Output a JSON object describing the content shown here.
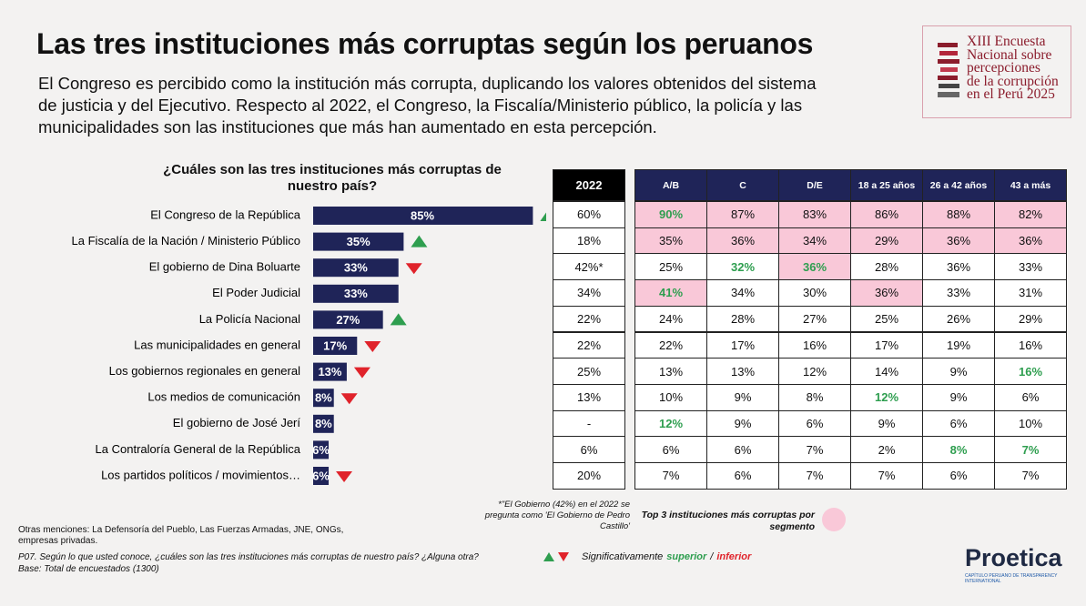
{
  "header": {
    "title": "Las tres instituciones más corruptas según los peruanos",
    "subtitle": "El Congreso es percibido como la institución más corrupta, duplicando los valores obtenidos del sistema de justicia y del Ejecutivo. Respecto al 2022, el Congreso, la Fiscalía/Ministerio público, la policía y las municipalidades son las instituciones que más han aumentado en esta percepción.",
    "logo_lines": [
      "XIII Encuesta",
      "Nacional sobre",
      "percepciones",
      "de la corrupción",
      "en el Perú 2025"
    ]
  },
  "chart_data": {
    "type": "bar",
    "orientation": "horizontal",
    "title": "¿Cuáles son las tres instituciones más corruptas de nuestro país?",
    "categories": [
      "El Congreso de la República",
      "La Fiscalía de la Nación / Ministerio Público",
      "El gobierno de Dina Boluarte",
      "El Poder Judicial",
      "La Policía Nacional",
      "Las municipalidades en general",
      "Los gobiernos regionales en general",
      "Los medios de comunicación",
      "El gobierno de José Jerí",
      "La Contraloría General de la República",
      "Los partidos políticos / movimientos…"
    ],
    "values": [
      85,
      35,
      33,
      33,
      27,
      17,
      13,
      8,
      8,
      6,
      6
    ],
    "value_labels": [
      "85%",
      "35%",
      "33%",
      "33%",
      "27%",
      "17%",
      "13%",
      "8%",
      "8%",
      "6%",
      "6%"
    ],
    "trend": [
      "up",
      "up",
      "down",
      null,
      "up",
      "down",
      "down",
      "down",
      null,
      null,
      "down"
    ],
    "color": "#1f2458",
    "up_color": "#2e9e4f",
    "down_color": "#e0232b"
  },
  "table_2022": {
    "header": "2022",
    "rows": [
      "60%",
      "18%",
      "42%*",
      "34%",
      "22%",
      "22%",
      "25%",
      "13%",
      "-",
      "6%",
      "20%"
    ]
  },
  "table": {
    "columns": [
      "A/B",
      "C",
      "D/E",
      "18 a 25 años",
      "26 a 42 años",
      "43 a más"
    ],
    "rows": [
      [
        {
          "text": "90%",
          "top3": true,
          "sig": "superior"
        },
        {
          "text": "87%",
          "top3": true
        },
        {
          "text": "83%",
          "top3": true
        },
        {
          "text": "86%",
          "top3": true
        },
        {
          "text": "88%",
          "top3": true
        },
        {
          "text": "82%",
          "top3": true
        }
      ],
      [
        {
          "text": "35%",
          "top3": true
        },
        {
          "text": "36%",
          "top3": true
        },
        {
          "text": "34%",
          "top3": true
        },
        {
          "text": "29%",
          "top3": true
        },
        {
          "text": "36%",
          "top3": true
        },
        {
          "text": "36%",
          "top3": true
        }
      ],
      [
        "25%",
        {
          "text": "32%",
          "sig": "superior"
        },
        {
          "text": "36%",
          "top3": true,
          "sig": "superior"
        },
        "28%",
        "36%",
        "33%"
      ],
      [
        {
          "text": "41%",
          "top3": true,
          "sig": "superior"
        },
        "34%",
        "30%",
        {
          "text": "36%",
          "top3": true
        },
        "33%",
        "31%"
      ],
      [
        "24%",
        "28%",
        "27%",
        "25%",
        "26%",
        "29%"
      ],
      [
        "22%",
        "17%",
        "16%",
        "17%",
        "19%",
        "16%"
      ],
      [
        "13%",
        "13%",
        "12%",
        "14%",
        "9%",
        {
          "text": "16%",
          "sig": "superior"
        }
      ],
      [
        "10%",
        "9%",
        "8%",
        {
          "text": "12%",
          "sig": "superior"
        },
        "9%",
        "6%"
      ],
      [
        {
          "text": "12%",
          "sig": "superior"
        },
        "9%",
        "6%",
        "9%",
        "6%",
        "10%"
      ],
      [
        "6%",
        "6%",
        "7%",
        "2%",
        {
          "text": "8%",
          "sig": "superior"
        },
        {
          "text": "7%",
          "sig": "superior"
        }
      ],
      [
        "7%",
        "6%",
        "7%",
        "7%",
        "6%",
        "7%"
      ]
    ],
    "top3_color": "#f9c8d8",
    "superior_color": "#2e9e4f"
  },
  "notes": {
    "gobierno_2022": "*\"El Gobierno (42%) en el 2022 se pregunta como 'El Gobierno de Pedro Castillo'",
    "top3_legend": "Top 3 instituciones más corruptas por segmento",
    "others": "Otras menciones: La Defensoría del Pueblo, Las Fuerzas Armadas, JNE, ONGs, empresas privadas.",
    "question": "P07. Según lo que usted conoce, ¿cuáles son las tres instituciones más corruptas de nuestro país? ¿Alguna otra?",
    "base": "Base: Total de encuestados (1300)",
    "sig_label": "Significativamente",
    "sig_superior": "superior",
    "sig_sep": "/",
    "sig_inferior": "inferior"
  },
  "brand": {
    "name": "Proetica",
    "tagline": "CAPÍTULO PERUANO DE TRANSPARENCY INTERNATIONAL"
  }
}
